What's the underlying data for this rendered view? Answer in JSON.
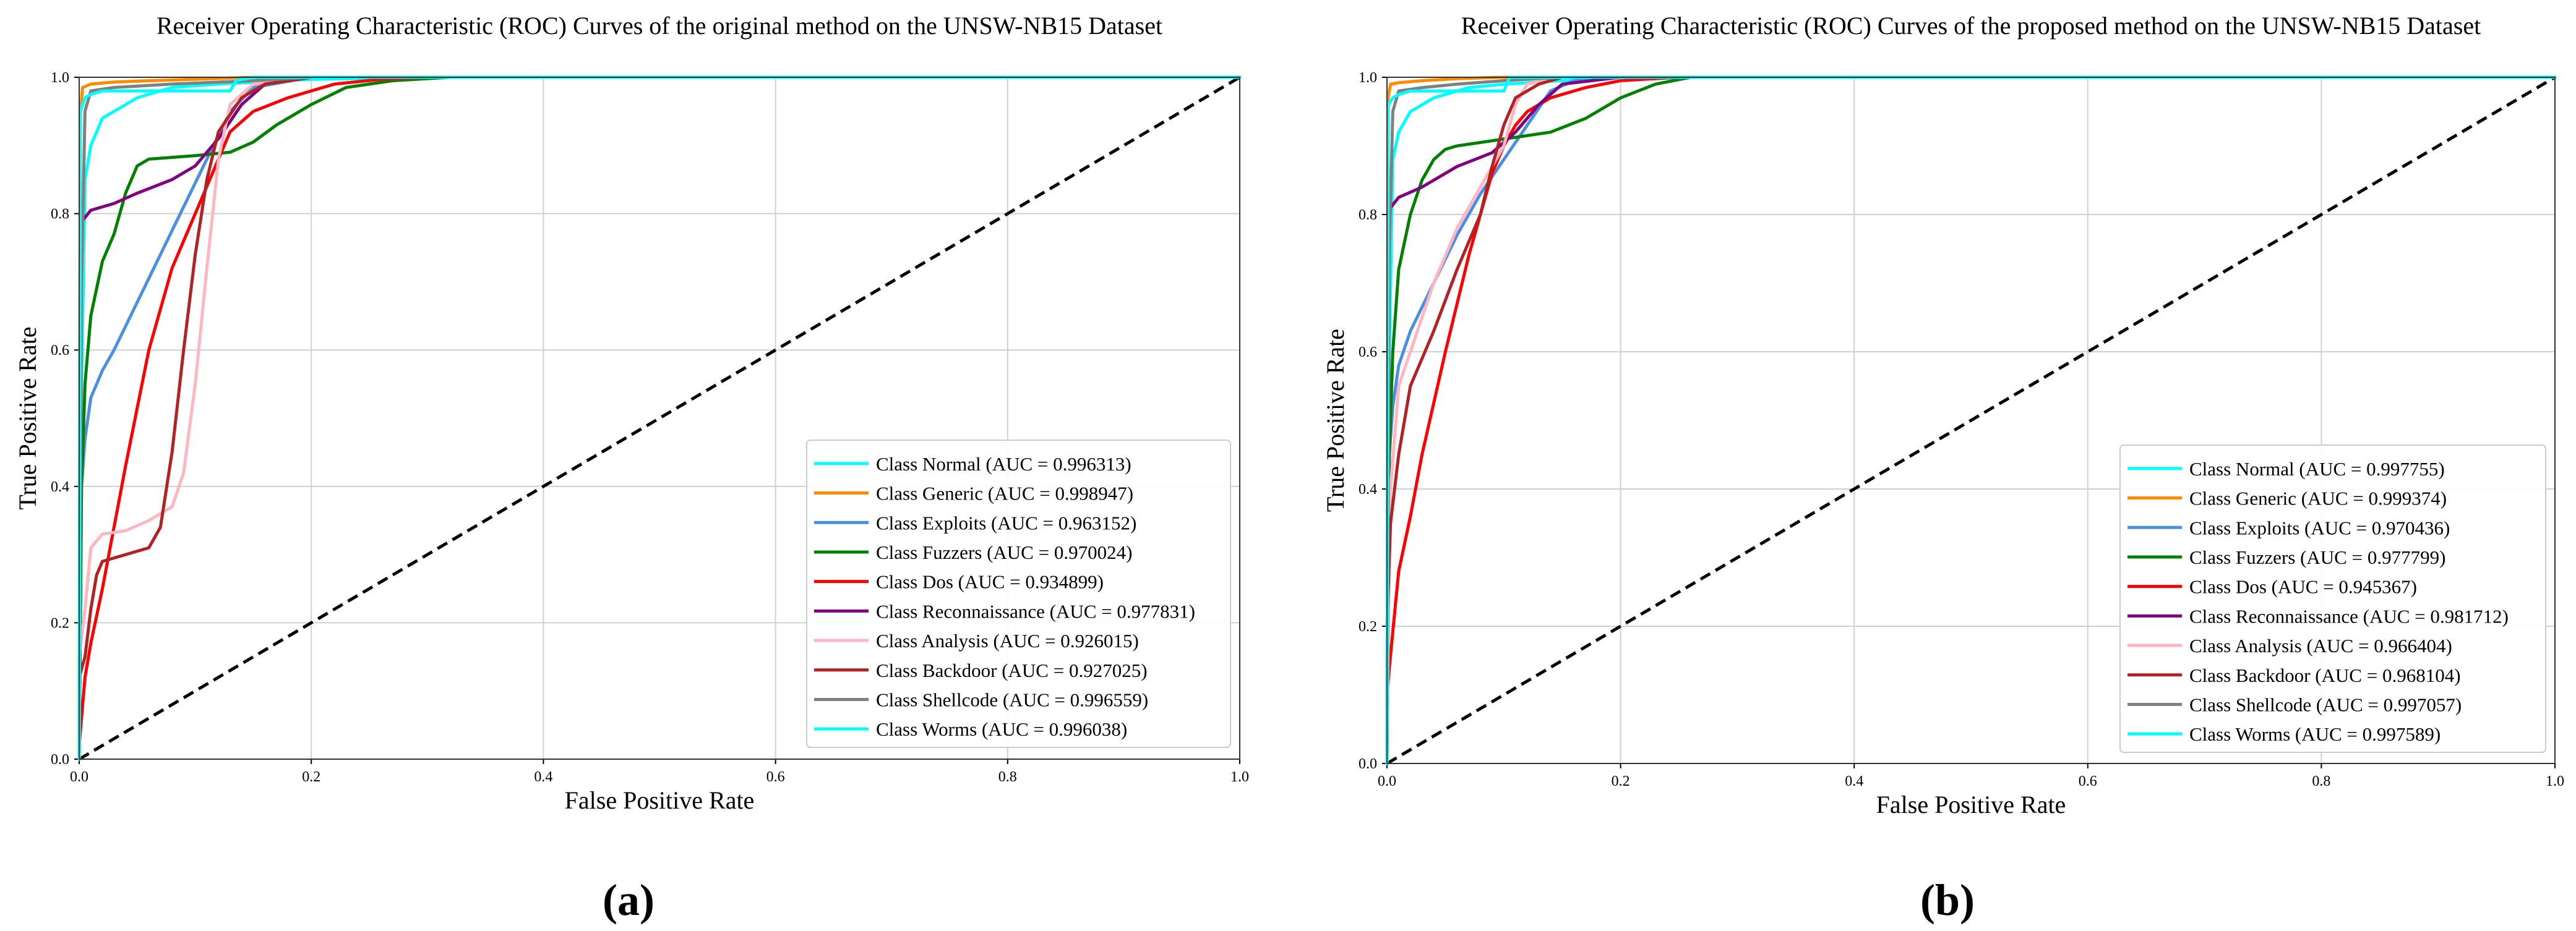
{
  "figure": {
    "panel_a_label": "(a)",
    "panel_b_label": "(b)"
  },
  "chart_data": [
    {
      "type": "line",
      "title": "Receiver Operating Characteristic (ROC) Curves of the original method on the UNSW-NB15 Dataset",
      "xlabel": "False Positive Rate",
      "ylabel": "True Positive Rate",
      "xlim": [
        0,
        1
      ],
      "ylim": [
        0,
        1
      ],
      "xticks": [
        "0.0",
        "0.2",
        "0.4",
        "0.6",
        "0.8",
        "1.0"
      ],
      "yticks": [
        "0.0",
        "0.2",
        "0.4",
        "0.6",
        "0.8",
        "1.0"
      ],
      "grid": true,
      "legend_position": "lower-right",
      "diagonal": {
        "x": [
          0,
          1
        ],
        "y": [
          0,
          1
        ],
        "style": "dashed",
        "color": "#000000"
      },
      "series": [
        {
          "name": "Class Normal (AUC = 0.996313)",
          "color": "#00ffff",
          "x": [
            0,
            0.002,
            0.005,
            0.01,
            0.02,
            0.05,
            0.08,
            0.12,
            0.2,
            0.3,
            1.0
          ],
          "y": [
            0,
            0.55,
            0.85,
            0.9,
            0.94,
            0.97,
            0.985,
            0.99,
            0.997,
            1.0,
            1.0
          ]
        },
        {
          "name": "Class Generic (AUC = 0.998947)",
          "color": "#ff8c00",
          "x": [
            0,
            0.001,
            0.003,
            0.01,
            0.03,
            0.06,
            0.1,
            0.15,
            1.0
          ],
          "y": [
            0,
            0.95,
            0.985,
            0.99,
            0.993,
            0.995,
            0.997,
            1.0,
            1.0
          ]
        },
        {
          "name": "Class Exploits (AUC = 0.963152)",
          "color": "#4a90e2",
          "x": [
            0,
            0.002,
            0.005,
            0.01,
            0.02,
            0.03,
            0.05,
            0.07,
            0.09,
            0.11,
            0.13,
            0.15,
            0.2,
            1.0
          ],
          "y": [
            0,
            0.4,
            0.47,
            0.53,
            0.57,
            0.6,
            0.67,
            0.74,
            0.81,
            0.88,
            0.95,
            0.985,
            1.0,
            1.0
          ]
        },
        {
          "name": "Class Fuzzers (AUC = 0.970024)",
          "color": "#008000",
          "x": [
            0,
            0.002,
            0.005,
            0.01,
            0.02,
            0.03,
            0.04,
            0.05,
            0.06,
            0.1,
            0.13,
            0.15,
            0.17,
            0.2,
            0.23,
            0.27,
            0.32,
            1.0
          ],
          "y": [
            0,
            0.4,
            0.55,
            0.65,
            0.73,
            0.77,
            0.83,
            0.87,
            0.88,
            0.885,
            0.89,
            0.905,
            0.93,
            0.96,
            0.985,
            0.995,
            1.0,
            1.0
          ]
        },
        {
          "name": "Class Dos (AUC = 0.934899)",
          "color": "#ff0000",
          "x": [
            0,
            0.005,
            0.01,
            0.02,
            0.04,
            0.06,
            0.08,
            0.1,
            0.12,
            0.13,
            0.15,
            0.18,
            0.22,
            0.26,
            0.3,
            1.0
          ],
          "y": [
            0.02,
            0.12,
            0.17,
            0.25,
            0.43,
            0.6,
            0.72,
            0.8,
            0.88,
            0.92,
            0.95,
            0.97,
            0.99,
            0.997,
            1.0,
            1.0
          ]
        },
        {
          "name": "Class Reconnaissance (AUC = 0.977831)",
          "color": "#800080",
          "x": [
            0,
            0.001,
            0.003,
            0.01,
            0.03,
            0.05,
            0.08,
            0.1,
            0.12,
            0.14,
            0.16,
            0.2,
            1.0
          ],
          "y": [
            0,
            0.72,
            0.79,
            0.805,
            0.815,
            0.83,
            0.85,
            0.87,
            0.91,
            0.96,
            0.99,
            1.0,
            1.0
          ]
        },
        {
          "name": "Class Analysis (AUC = 0.926015)",
          "color": "#ffb6c1",
          "x": [
            0,
            0.005,
            0.01,
            0.02,
            0.04,
            0.06,
            0.08,
            0.09,
            0.1,
            0.11,
            0.12,
            0.13,
            0.15,
            0.2,
            1.0
          ],
          "y": [
            0.15,
            0.22,
            0.31,
            0.33,
            0.335,
            0.35,
            0.37,
            0.42,
            0.55,
            0.72,
            0.88,
            0.96,
            0.99,
            1.0,
            1.0
          ]
        },
        {
          "name": "Class Backdoor (AUC = 0.927025)",
          "color": "#b22222",
          "x": [
            0,
            0.005,
            0.01,
            0.015,
            0.02,
            0.04,
            0.06,
            0.07,
            0.08,
            0.09,
            0.1,
            0.11,
            0.12,
            0.14,
            0.16,
            0.2,
            1.0
          ],
          "y": [
            0.12,
            0.15,
            0.22,
            0.27,
            0.29,
            0.3,
            0.31,
            0.34,
            0.45,
            0.6,
            0.74,
            0.85,
            0.92,
            0.97,
            0.99,
            1.0,
            1.0
          ]
        },
        {
          "name": "Class Shellcode (AUC = 0.996559)",
          "color": "#808080",
          "x": [
            0,
            0.002,
            0.005,
            0.01,
            0.03,
            0.08,
            0.15,
            0.2,
            1.0
          ],
          "y": [
            0,
            0.7,
            0.95,
            0.98,
            0.985,
            0.99,
            0.995,
            1.0,
            1.0
          ]
        },
        {
          "name": "Class Worms (AUC = 0.996038)",
          "color": "#00ffff",
          "x": [
            0,
            0.001,
            0.005,
            0.01,
            0.02,
            0.13,
            0.135,
            0.15,
            1.0
          ],
          "y": [
            0,
            0.95,
            0.97,
            0.975,
            0.98,
            0.98,
            0.995,
            1.0,
            1.0
          ]
        }
      ]
    },
    {
      "type": "line",
      "title": "Receiver Operating Characteristic (ROC) Curves of the proposed method on the UNSW-NB15 Dataset",
      "xlabel": "False Positive Rate",
      "ylabel": "True Positive Rate",
      "xlim": [
        0,
        1
      ],
      "ylim": [
        0,
        1
      ],
      "xticks": [
        "0.0",
        "0.2",
        "0.4",
        "0.6",
        "0.8",
        "1.0"
      ],
      "yticks": [
        "0.0",
        "0.2",
        "0.4",
        "0.6",
        "0.8",
        "1.0"
      ],
      "grid": true,
      "legend_position": "lower-right",
      "diagonal": {
        "x": [
          0,
          1
        ],
        "y": [
          0,
          1
        ],
        "style": "dashed",
        "color": "#000000"
      },
      "series": [
        {
          "name": "Class Normal (AUC = 0.997755)",
          "color": "#00ffff",
          "x": [
            0,
            0.002,
            0.005,
            0.01,
            0.02,
            0.04,
            0.07,
            0.1,
            0.15,
            0.2,
            0.4,
            1.0
          ],
          "y": [
            0,
            0.6,
            0.88,
            0.92,
            0.95,
            0.97,
            0.985,
            0.99,
            0.995,
            1.0,
            1.0,
            1.0
          ]
        },
        {
          "name": "Class Generic (AUC = 0.999374)",
          "color": "#ff8c00",
          "x": [
            0,
            0.001,
            0.003,
            0.01,
            0.03,
            0.06,
            0.1,
            1.0
          ],
          "y": [
            0,
            0.97,
            0.99,
            0.992,
            0.995,
            0.998,
            1.0,
            1.0
          ]
        },
        {
          "name": "Class Exploits (AUC = 0.970436)",
          "color": "#4a90e2",
          "x": [
            0,
            0.002,
            0.005,
            0.01,
            0.02,
            0.04,
            0.06,
            0.08,
            0.1,
            0.12,
            0.14,
            0.16,
            0.2,
            1.0
          ],
          "y": [
            0,
            0.45,
            0.52,
            0.58,
            0.63,
            0.7,
            0.77,
            0.83,
            0.88,
            0.93,
            0.98,
            0.995,
            1.0,
            1.0
          ]
        },
        {
          "name": "Class Fuzzers (AUC = 0.977799)",
          "color": "#008000",
          "x": [
            0,
            0.002,
            0.005,
            0.01,
            0.02,
            0.03,
            0.04,
            0.05,
            0.06,
            0.1,
            0.14,
            0.17,
            0.2,
            0.23,
            0.26,
            1.0
          ],
          "y": [
            0,
            0.45,
            0.6,
            0.72,
            0.8,
            0.85,
            0.88,
            0.895,
            0.9,
            0.91,
            0.92,
            0.94,
            0.97,
            0.99,
            1.0,
            1.0
          ]
        },
        {
          "name": "Class Dos (AUC = 0.945367)",
          "color": "#ff0000",
          "x": [
            0,
            0.002,
            0.01,
            0.02,
            0.03,
            0.05,
            0.07,
            0.09,
            0.1,
            0.11,
            0.12,
            0.14,
            0.17,
            0.2,
            0.25,
            1.0
          ],
          "y": [
            0.1,
            0.14,
            0.28,
            0.36,
            0.45,
            0.6,
            0.74,
            0.86,
            0.9,
            0.93,
            0.95,
            0.97,
            0.985,
            0.995,
            1.0,
            1.0
          ]
        },
        {
          "name": "Class Reconnaissance (AUC = 0.981712)",
          "color": "#800080",
          "x": [
            0,
            0.001,
            0.003,
            0.01,
            0.03,
            0.06,
            0.09,
            0.11,
            0.13,
            0.15,
            0.2,
            1.0
          ],
          "y": [
            0,
            0.75,
            0.81,
            0.825,
            0.84,
            0.87,
            0.89,
            0.92,
            0.96,
            0.99,
            1.0,
            1.0
          ]
        },
        {
          "name": "Class Analysis (AUC = 0.966404)",
          "color": "#ffb6c1",
          "x": [
            0,
            0.003,
            0.01,
            0.02,
            0.04,
            0.06,
            0.08,
            0.1,
            0.11,
            0.12,
            0.15,
            0.2,
            1.0
          ],
          "y": [
            0.05,
            0.4,
            0.55,
            0.6,
            0.7,
            0.78,
            0.84,
            0.9,
            0.96,
            0.99,
            1.0,
            1.0,
            1.0
          ]
        },
        {
          "name": "Class Backdoor (AUC = 0.968104)",
          "color": "#b22222",
          "x": [
            0,
            0.003,
            0.01,
            0.02,
            0.04,
            0.06,
            0.08,
            0.09,
            0.1,
            0.11,
            0.13,
            0.15,
            0.2,
            1.0
          ],
          "y": [
            0.2,
            0.35,
            0.45,
            0.55,
            0.63,
            0.72,
            0.8,
            0.87,
            0.93,
            0.97,
            0.99,
            1.0,
            1.0,
            1.0
          ]
        },
        {
          "name": "Class Shellcode (AUC = 0.997057)",
          "color": "#808080",
          "x": [
            0,
            0.002,
            0.005,
            0.01,
            0.03,
            0.06,
            0.1,
            0.15,
            1.0
          ],
          "y": [
            0,
            0.75,
            0.95,
            0.98,
            0.985,
            0.99,
            0.995,
            1.0,
            1.0
          ]
        },
        {
          "name": "Class Worms (AUC = 0.997589)",
          "color": "#00ffff",
          "x": [
            0,
            0.001,
            0.005,
            0.01,
            0.02,
            0.1,
            0.105,
            0.12,
            1.0
          ],
          "y": [
            0,
            0.96,
            0.97,
            0.975,
            0.98,
            0.98,
            1.0,
            1.0,
            1.0
          ]
        }
      ]
    }
  ]
}
